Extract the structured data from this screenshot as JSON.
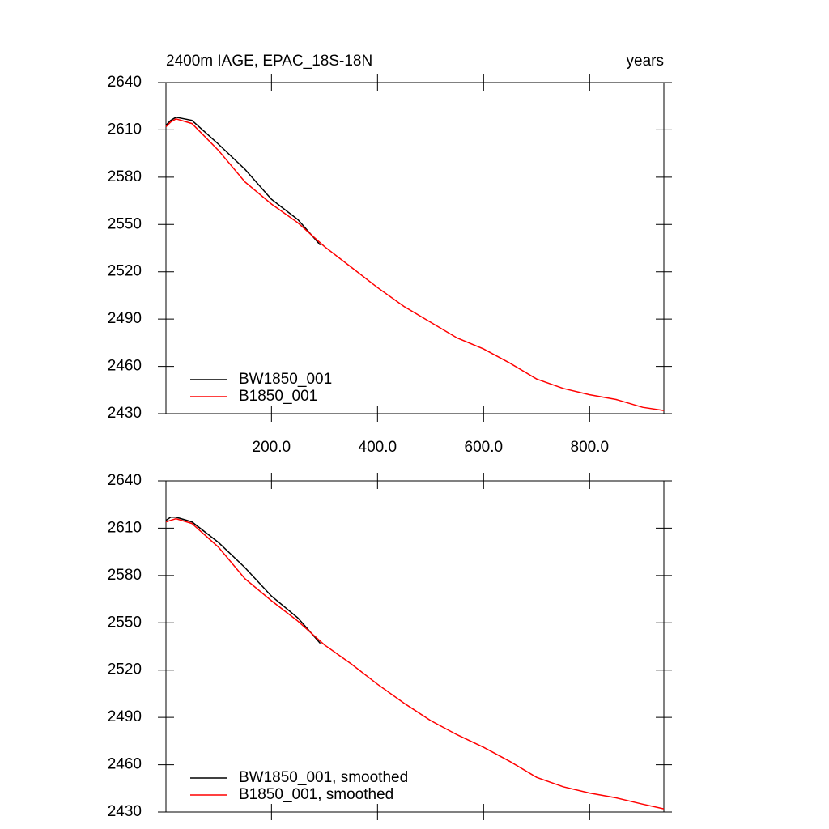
{
  "chart_data": [
    {
      "type": "line",
      "title": "2400m IAGE, EPAC_18S-18N",
      "right_string": "years",
      "xlim": [
        1,
        940
      ],
      "ylim": [
        2430,
        2640
      ],
      "xticks": [
        {
          "value": 200,
          "label": "200.0"
        },
        {
          "value": 400,
          "label": "400.0"
        },
        {
          "value": 600,
          "label": "600.0"
        },
        {
          "value": 800,
          "label": "800.0"
        }
      ],
      "yticks": [
        2430,
        2460,
        2490,
        2520,
        2550,
        2580,
        2610,
        2640
      ],
      "series": [
        {
          "name": "BW1850_001",
          "color": "#000000",
          "x": [
            1,
            10,
            20,
            50,
            100,
            150,
            200,
            250,
            292
          ],
          "values": [
            2613,
            2616,
            2618,
            2616,
            2601,
            2585,
            2566,
            2553,
            2537
          ]
        },
        {
          "name": "B1850_001",
          "color": "#ff0000",
          "x": [
            1,
            10,
            20,
            50,
            100,
            150,
            200,
            250,
            300,
            350,
            400,
            450,
            500,
            550,
            600,
            650,
            700,
            750,
            800,
            850,
            900,
            940
          ],
          "values": [
            2612,
            2615,
            2617,
            2614,
            2597,
            2577,
            2563,
            2551,
            2536,
            2523,
            2510,
            2498,
            2488,
            2478,
            2471,
            2462,
            2452,
            2446,
            2442,
            2439,
            2434,
            2432
          ]
        }
      ]
    },
    {
      "type": "line",
      "xlim": [
        1,
        940
      ],
      "ylim": [
        2430,
        2640
      ],
      "xticks": [
        200,
        400,
        600,
        800
      ],
      "xtick_labels": false,
      "yticks": [
        2430,
        2460,
        2490,
        2520,
        2550,
        2580,
        2610,
        2640
      ],
      "series": [
        {
          "name": "BW1850_001, smoothed",
          "color": "#000000",
          "x": [
            1,
            10,
            20,
            50,
            100,
            150,
            200,
            250,
            292
          ],
          "values": [
            2615,
            2617,
            2617,
            2614,
            2601,
            2585,
            2567,
            2553,
            2537
          ]
        },
        {
          "name": "B1850_001, smoothed",
          "color": "#ff0000",
          "x": [
            1,
            10,
            20,
            50,
            100,
            150,
            200,
            250,
            300,
            350,
            400,
            450,
            500,
            550,
            600,
            650,
            700,
            750,
            800,
            850,
            900,
            940
          ],
          "values": [
            2614,
            2615,
            2616,
            2613,
            2598,
            2578,
            2564,
            2551,
            2536,
            2524,
            2511,
            2499,
            2488,
            2479,
            2471,
            2462,
            2452,
            2446,
            2442,
            2439,
            2435,
            2432
          ]
        }
      ]
    }
  ]
}
